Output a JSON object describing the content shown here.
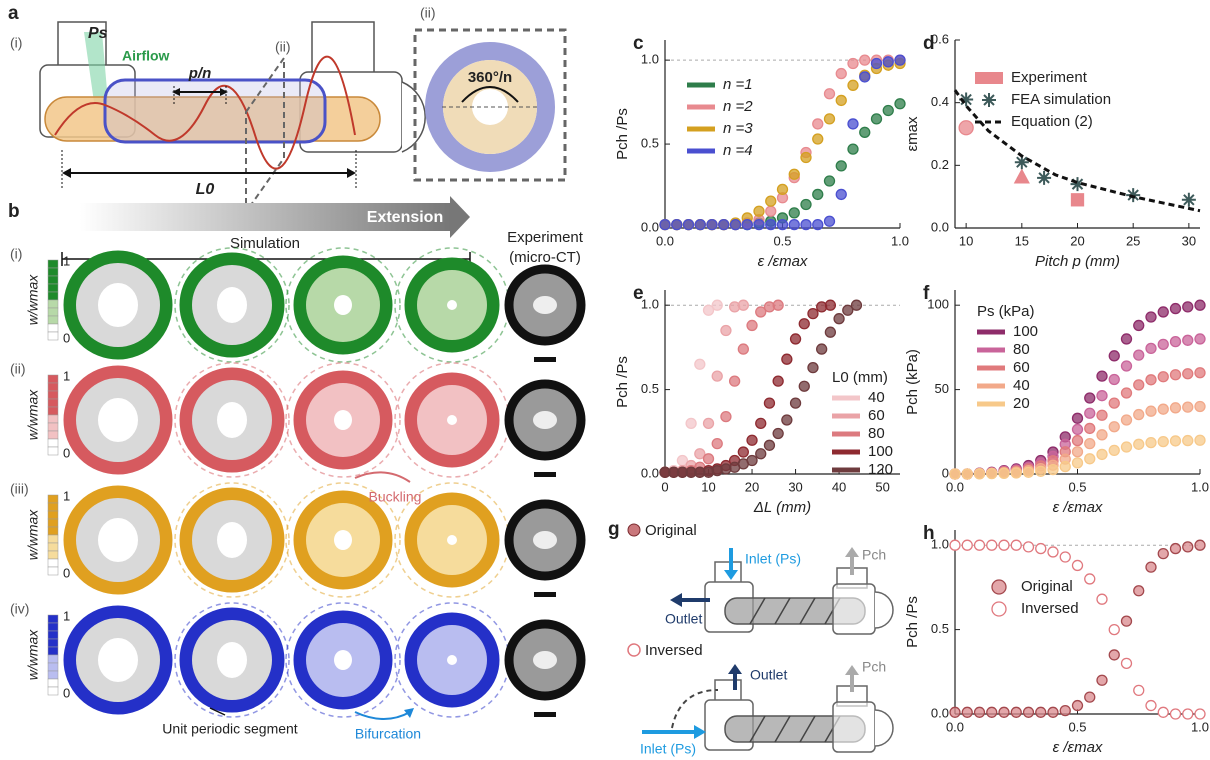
{
  "figure": {
    "a": {
      "label": "a",
      "view_i": "(i)",
      "ps": "Ps",
      "airflow": "Airflow",
      "pitch": "p/n",
      "plane": "(ii)",
      "length": "L0",
      "view_ii": "(ii)",
      "angle": "360°/n"
    },
    "b": {
      "label": "b",
      "arrow": "Extension",
      "simulation": "Simulation",
      "experiment_1": "Experiment",
      "experiment_2": "(micro-CT)",
      "rows": [
        "(i)",
        "(ii)",
        "(iii)",
        "(iv)"
      ],
      "colorbar_label": "w/wmax",
      "colorbar_max": 1,
      "colorbar_min": 0,
      "buckling": "Buckling",
      "unit": "Unit periodic segment",
      "bifurcation": "Bifurcation"
    },
    "g": {
      "label": "g",
      "original": "Original",
      "inlet_1": "Inlet (Ps)",
      "pch_1": "Pch",
      "outlet_1": "Outlet",
      "inversed": "Inversed",
      "outlet_2": "Outlet",
      "pch_2": "Pch",
      "inlet_2": "Inlet (Ps)"
    }
  },
  "chart_data": [
    {
      "type": "line",
      "label": "c",
      "xlabel": "ε /εmax",
      "ylabel": "Pch /Ps",
      "x": [
        0,
        0.05,
        0.1,
        0.15,
        0.2,
        0.25,
        0.3,
        0.35,
        0.4,
        0.45,
        0.5,
        0.55,
        0.6,
        0.65,
        0.7,
        0.75,
        0.8,
        0.85,
        0.9,
        0.95,
        1
      ],
      "xlim": [
        0,
        1
      ],
      "xticks": [
        {
          "value": 0,
          "label": "0.0"
        },
        0.5,
        {
          "value": 1,
          "label": "1.0"
        }
      ],
      "ylim": [
        0,
        1.12
      ],
      "yticks": [
        {
          "value": 0,
          "label": "0.0"
        },
        0.5,
        {
          "value": 1,
          "label": "1.0"
        }
      ],
      "hline": 1,
      "legend": "upper left",
      "series": [
        {
          "name": "n =1",
          "color": "#2e7d4a",
          "values": [
            0.02,
            0.02,
            0.02,
            0.02,
            0.02,
            0.02,
            0.02,
            0.02,
            0.03,
            0.04,
            0.06,
            0.09,
            0.14,
            0.2,
            0.28,
            0.37,
            0.47,
            0.57,
            0.65,
            0.7,
            0.74
          ]
        },
        {
          "name": "n =2",
          "color": "#e88a8f",
          "values": [
            0.02,
            0.02,
            0.02,
            0.02,
            0.02,
            0.02,
            0.02,
            0.03,
            0.05,
            0.1,
            0.18,
            0.3,
            0.45,
            0.62,
            0.8,
            0.92,
            0.98,
            1,
            1,
            1,
            1
          ]
        },
        {
          "name": "n =3",
          "color": "#d4a020",
          "values": [
            0.02,
            0.02,
            0.02,
            0.02,
            0.02,
            0.02,
            0.03,
            0.06,
            0.1,
            0.16,
            0.23,
            0.32,
            0.42,
            0.53,
            0.65,
            0.76,
            0.85,
            0.91,
            0.95,
            0.97,
            0.98
          ]
        },
        {
          "name": "n =4",
          "color": "#4a4fd0",
          "values": [
            0.02,
            0.02,
            0.02,
            0.02,
            0.02,
            0.02,
            0.02,
            0.02,
            0.02,
            0.02,
            0.02,
            0.02,
            0.02,
            0.02,
            0.04,
            0.2,
            0.62,
            0.9,
            0.98,
            0.99,
            1
          ]
        }
      ]
    },
    {
      "type": "scatter",
      "label": "d",
      "xlabel": "Pitch p (mm)",
      "ylabel": "εmax",
      "xlim": [
        9,
        31
      ],
      "xticks": [
        10,
        15,
        20,
        25,
        30
      ],
      "ylim": [
        0,
        0.6
      ],
      "yticks": [
        {
          "value": 0,
          "label": "0.0"
        },
        0.2,
        0.4,
        0.6
      ],
      "legend": "upper right",
      "series": [
        {
          "name": "Experiment",
          "color": "#e8878c",
          "markers": [
            "circle",
            "triangle",
            "square"
          ],
          "x": [
            10,
            15,
            20
          ],
          "values": [
            0.32,
            0.16,
            0.09
          ]
        },
        {
          "name": "FEA simulation",
          "color": "#3d5a5a",
          "marker": "asterisk",
          "x": [
            10,
            15,
            17,
            20,
            25,
            30
          ],
          "values": [
            0.41,
            0.21,
            0.16,
            0.14,
            0.105,
            0.09
          ]
        },
        {
          "name": "Equation (2)",
          "color": "#111111",
          "style": "dashed",
          "x": [
            9,
            10,
            12,
            15,
            18,
            20,
            25,
            31
          ],
          "values": [
            0.44,
            0.39,
            0.31,
            0.23,
            0.17,
            0.145,
            0.1,
            0.055
          ]
        }
      ]
    },
    {
      "type": "line",
      "label": "e",
      "xlabel": "ΔL (mm)",
      "ylabel": "Pch /Ps",
      "x": [
        0,
        2,
        4,
        6,
        8,
        10,
        12,
        14,
        16,
        18,
        20,
        22,
        24,
        26,
        28,
        30,
        32,
        34,
        36,
        38,
        40,
        42,
        44
      ],
      "xlim": [
        0,
        54
      ],
      "xticks": [
        0,
        10,
        20,
        30,
        40,
        50
      ],
      "ylim": [
        0,
        1.09
      ],
      "yticks": [
        {
          "value": 0,
          "label": "0.0"
        },
        0.5,
        {
          "value": 1,
          "label": "1.0"
        }
      ],
      "hline": 1,
      "legend": "lower right",
      "legend_title": "L0 (mm)",
      "series": [
        {
          "name": "40",
          "color": "#f3c6c9",
          "values": [
            0.01,
            0.02,
            0.08,
            0.3,
            0.65,
            0.97,
            1,
            null,
            null,
            null,
            null,
            null,
            null,
            null,
            null,
            null,
            null,
            null,
            null,
            null,
            null,
            null,
            null
          ]
        },
        {
          "name": "60",
          "color": "#eaa3a7",
          "values": [
            0.01,
            0.01,
            0.02,
            0.05,
            0.12,
            0.3,
            0.58,
            0.85,
            0.99,
            1,
            null,
            null,
            null,
            null,
            null,
            null,
            null,
            null,
            null,
            null,
            null,
            null,
            null
          ]
        },
        {
          "name": "80",
          "color": "#dc7a7f",
          "values": [
            0.01,
            0.01,
            0.01,
            0.02,
            0.04,
            0.09,
            0.18,
            0.34,
            0.55,
            0.74,
            0.88,
            0.96,
            0.99,
            1,
            null,
            null,
            null,
            null,
            null,
            null,
            null,
            null,
            null
          ]
        },
        {
          "name": "100",
          "color": "#8e2a30",
          "values": [
            0.01,
            0.01,
            0.01,
            0.01,
            0.01,
            0.02,
            0.03,
            0.05,
            0.08,
            0.13,
            0.2,
            0.3,
            0.42,
            0.55,
            0.68,
            0.8,
            0.89,
            0.95,
            0.99,
            1,
            null,
            null,
            null
          ]
        },
        {
          "name": "120",
          "color": "#6e3b3d",
          "values": [
            0.01,
            0.01,
            0.01,
            0.01,
            0.01,
            0.01,
            0.02,
            0.03,
            0.04,
            0.06,
            0.08,
            0.12,
            0.17,
            0.24,
            0.32,
            0.42,
            0.52,
            0.63,
            0.74,
            0.84,
            0.92,
            0.97,
            1
          ]
        }
      ]
    },
    {
      "type": "line",
      "label": "f",
      "xlabel": "ε /εmax",
      "ylabel": "Pch (kPa)",
      "x": [
        0,
        0.05,
        0.1,
        0.15,
        0.2,
        0.25,
        0.3,
        0.35,
        0.4,
        0.45,
        0.5,
        0.55,
        0.6,
        0.65,
        0.7,
        0.75,
        0.8,
        0.85,
        0.9,
        0.95,
        1
      ],
      "xlim": [
        0,
        1
      ],
      "xticks": [
        {
          "value": 0,
          "label": "0.0"
        },
        0.5,
        {
          "value": 1,
          "label": "1.0"
        }
      ],
      "ylim": [
        0,
        109
      ],
      "yticks": [
        0,
        50,
        100
      ],
      "legend": "upper left",
      "legend_title": "Ps (kPa)",
      "series": [
        {
          "name": "100",
          "color": "#8e2c6a",
          "values": [
            0,
            0,
            0.5,
            1,
            2,
            3,
            5,
            8,
            13,
            22,
            33,
            45,
            58,
            70,
            80,
            88,
            93,
            96,
            98,
            99,
            100
          ]
        },
        {
          "name": "80",
          "color": "#c9649a",
          "values": [
            0,
            0,
            0.4,
            0.8,
            1.6,
            2.4,
            4,
            6.4,
            10.4,
            17.6,
            26.4,
            36,
            46.4,
            56,
            64,
            70.4,
            74.4,
            76.8,
            78.4,
            79.2,
            80
          ]
        },
        {
          "name": "60",
          "color": "#e07a7c",
          "values": [
            0,
            0,
            0.3,
            0.6,
            1.2,
            1.8,
            3,
            4.8,
            7.8,
            13.2,
            19.8,
            27,
            34.8,
            42,
            48,
            52.8,
            55.8,
            57.6,
            58.8,
            59.4,
            60
          ]
        },
        {
          "name": "40",
          "color": "#f2a98a",
          "values": [
            0,
            0,
            0.2,
            0.4,
            0.8,
            1.2,
            2,
            3.2,
            5.2,
            8.8,
            13.2,
            18,
            23.2,
            28,
            32,
            35.2,
            37.2,
            38.4,
            39.2,
            39.6,
            40
          ]
        },
        {
          "name": "20",
          "color": "#f7c98a",
          "values": [
            0,
            0,
            0.1,
            0.2,
            0.4,
            0.6,
            1,
            1.6,
            2.6,
            4.4,
            6.6,
            9,
            11.6,
            14,
            16,
            17.6,
            18.6,
            19.2,
            19.6,
            19.8,
            20
          ]
        }
      ]
    },
    {
      "type": "scatter",
      "label": "h",
      "xlabel": "ε /εmax",
      "ylabel": "Pch /Ps",
      "x": [
        0,
        0.05,
        0.1,
        0.15,
        0.2,
        0.25,
        0.3,
        0.35,
        0.4,
        0.45,
        0.5,
        0.55,
        0.6,
        0.65,
        0.7,
        0.75,
        0.8,
        0.85,
        0.9,
        0.95,
        1
      ],
      "xlim": [
        0,
        1
      ],
      "xticks": [
        {
          "value": 0,
          "label": "0.0"
        },
        0.5,
        {
          "value": 1,
          "label": "1.0"
        }
      ],
      "ylim": [
        0,
        1.09
      ],
      "yticks": [
        {
          "value": 0,
          "label": "0.0"
        },
        0.5,
        {
          "value": 1,
          "label": "1.0"
        }
      ],
      "hline": 1,
      "legend": "center left",
      "series": [
        {
          "name": "Original",
          "color": "#d98a8e",
          "edge": "#a3484d",
          "values": [
            0.01,
            0.01,
            0.01,
            0.01,
            0.01,
            0.01,
            0.01,
            0.01,
            0.01,
            0.02,
            0.05,
            0.1,
            0.2,
            0.35,
            0.55,
            0.73,
            0.87,
            0.95,
            0.98,
            0.99,
            1
          ]
        },
        {
          "name": "Inversed",
          "color": "#e0787e",
          "filled": false,
          "values": [
            1,
            1,
            1,
            1,
            1,
            1,
            0.99,
            0.98,
            0.96,
            0.93,
            0.88,
            0.8,
            0.68,
            0.5,
            0.3,
            0.14,
            0.05,
            0.01,
            0,
            0,
            0
          ]
        }
      ]
    }
  ]
}
